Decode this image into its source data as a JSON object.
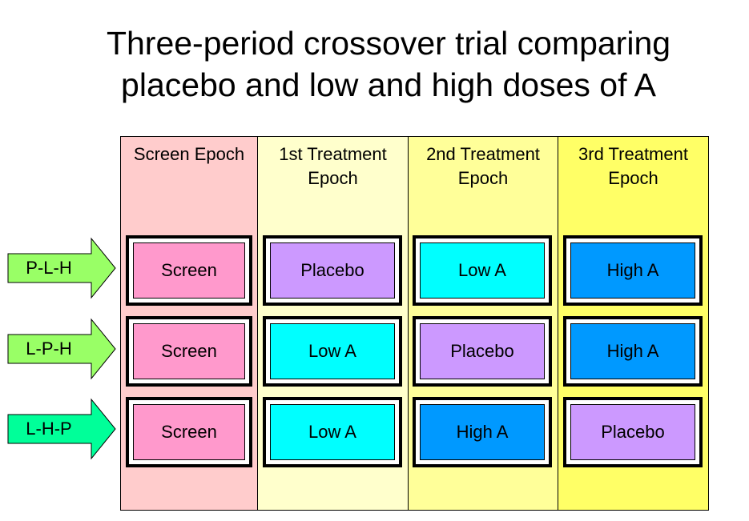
{
  "title_line1": "Three-period crossover trial comparing",
  "title_line2": "placebo and low and high doses of A",
  "epochs": [
    {
      "label": "Screen Epoch",
      "color": "#ffcccc"
    },
    {
      "label": "1st Treatment\nEpoch",
      "color": "#ffffcc"
    },
    {
      "label": "2nd Treatment\nEpoch",
      "color": "#ffff99"
    },
    {
      "label": "3rd Treatment\nEpoch",
      "color": "#ffff66"
    }
  ],
  "sequences": [
    {
      "label": "P-L-H",
      "arrow_color": "#99ff66",
      "cells": [
        "Screen",
        "Placebo",
        "Low A",
        "High A"
      ]
    },
    {
      "label": "L-P-H",
      "arrow_color": "#99ff66",
      "cells": [
        "Screen",
        "Low A",
        "Placebo",
        "High A"
      ]
    },
    {
      "label": "L-H-P",
      "arrow_color": "#00ff99",
      "cells": [
        "Screen",
        "Low A",
        "High A",
        "Placebo"
      ]
    }
  ],
  "treatment_colors": {
    "Screen": "#ff99cc",
    "Placebo": "#cc99ff",
    "Low A": "#00ffff",
    "High A": "#0099ff"
  }
}
